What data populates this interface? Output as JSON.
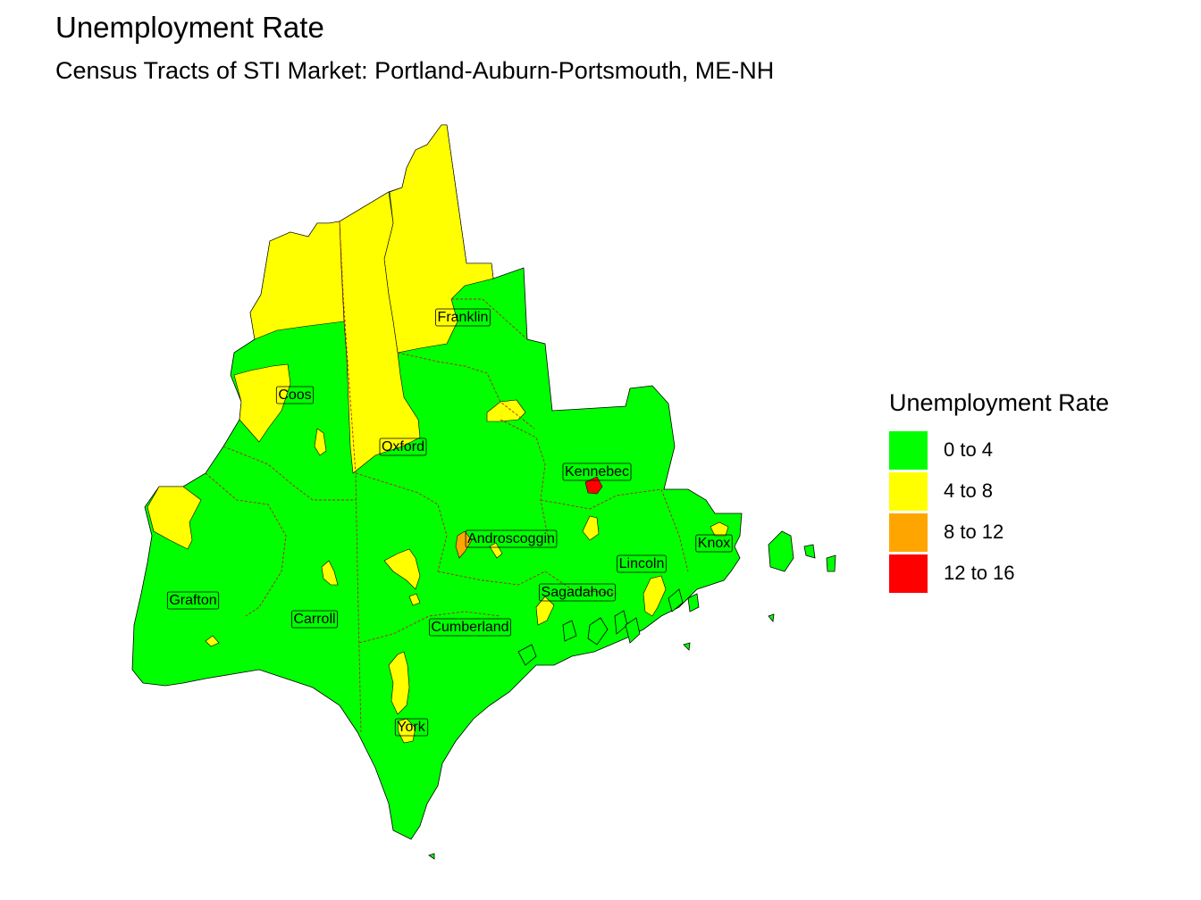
{
  "title": "Unemployment Rate",
  "subtitle": "Census Tracts of STI Market: Portland-Auburn-Portsmouth, ME-NH",
  "legend": {
    "title": "Unemployment Rate",
    "items": [
      {
        "label": "0 to 4",
        "color": "#00ff00"
      },
      {
        "label": "4 to 8",
        "color": "#ffff00"
      },
      {
        "label": "8 to 12",
        "color": "#ffa500"
      },
      {
        "label": "12 to 16",
        "color": "#ff0000"
      }
    ]
  },
  "counties": [
    {
      "name": "Franklin"
    },
    {
      "name": "Coos"
    },
    {
      "name": "Oxford"
    },
    {
      "name": "Kennebec"
    },
    {
      "name": "Androscoggin"
    },
    {
      "name": "Knox"
    },
    {
      "name": "Lincoln"
    },
    {
      "name": "Grafton"
    },
    {
      "name": "Sagadahoc"
    },
    {
      "name": "Carroll"
    },
    {
      "name": "Cumberland"
    },
    {
      "name": "York"
    }
  ],
  "colors": {
    "background": "#ffffff",
    "border": "#b22222",
    "label_box": "#00ff00"
  }
}
